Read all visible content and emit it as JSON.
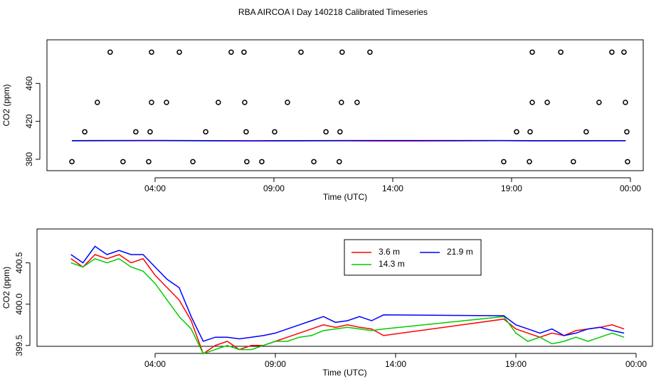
{
  "chart_data": [
    {
      "type": "line",
      "title": "RBA AIRCOA I  Day 140218  Calibrated Timeseries",
      "xlabel": "Time (UTC)",
      "ylabel": "CO2 (ppm)",
      "xlim": [
        -0.55,
        24.54
      ],
      "ylim": [
        368,
        506
      ],
      "xticks": [
        {
          "value": 4,
          "label": "04:00"
        },
        {
          "value": 9,
          "label": "09:00"
        },
        {
          "value": 14,
          "label": "14:00"
        },
        {
          "value": 19,
          "label": "19:00"
        },
        {
          "value": 24,
          "label": "00:00"
        }
      ],
      "yticks": [
        380,
        420,
        460
      ],
      "series": [
        {
          "color": "#00cc00",
          "x": [
            0.5,
            4,
            8,
            12,
            13.5,
            15,
            18.6,
            20,
            23.8
          ],
          "values": [
            399.4,
            399.6,
            399.3,
            399.5,
            399.6,
            399.5,
            399.6,
            399.4,
            399.5
          ]
        },
        {
          "color": "#ff0000",
          "x": [
            0.5,
            4,
            8,
            12,
            13.5,
            15,
            18.6,
            20,
            23.8
          ],
          "values": [
            399.6,
            399.7,
            399.4,
            399.6,
            399.3,
            399.3,
            399.7,
            399.5,
            399.6
          ]
        },
        {
          "color": "#0000ff",
          "x": [
            0.5,
            4,
            8,
            12,
            13.5,
            15,
            18.6,
            20,
            23.8
          ],
          "values": [
            399.7,
            399.9,
            399.5,
            399.8,
            399.8,
            399.8,
            399.8,
            399.6,
            399.7
          ]
        },
        {
          "color": "#000000",
          "marker": "circle",
          "x": [
            2.11,
            3.85,
            5.02,
            7.2,
            7.74,
            10.14,
            11.87,
            13.04,
            19.87,
            21.07,
            23.22,
            23.73,
            1.57,
            3.85,
            4.48,
            6.66,
            7.77,
            9.57,
            11.84,
            12.5,
            19.87,
            20.5,
            22.68,
            23.79,
            1.04,
            3.19,
            3.79,
            6.13,
            7.83,
            9.03,
            11.19,
            11.78,
            19.21,
            19.78,
            22.14,
            23.85,
            0.5,
            2.65,
            3.73,
            5.59,
            7.86,
            8.49,
            10.68,
            11.75,
            18.67,
            19.75,
            21.6,
            23.88
          ],
          "values": [
            493,
            493,
            493,
            493,
            493,
            493,
            493,
            493,
            493,
            493,
            493,
            493,
            440,
            440,
            440,
            440,
            440,
            440,
            440,
            440,
            440,
            440,
            440,
            440,
            409,
            409,
            409,
            409,
            409,
            409,
            409,
            409,
            409,
            409,
            409,
            409,
            377.5,
            377.5,
            377.5,
            377.5,
            377.5,
            377.5,
            377.5,
            377.5,
            377.5,
            377.5,
            377.5,
            377.5
          ]
        }
      ]
    },
    {
      "type": "line",
      "xlabel": "Time (UTC)",
      "ylabel": "CO2 (ppm)",
      "xlim": [
        -0.91,
        24.68
      ],
      "ylim": [
        399.49,
        400.91
      ],
      "xticks": [
        {
          "value": 4,
          "label": "04:00"
        },
        {
          "value": 9,
          "label": "09:00"
        },
        {
          "value": 14,
          "label": "14:00"
        },
        {
          "value": 19,
          "label": "19:00"
        },
        {
          "value": 24,
          "label": "00:00"
        }
      ],
      "yticks": [
        399.5,
        {
          "value": 400,
          "label": "400.0"
        },
        400.5
      ],
      "legend": "top",
      "x": [
        0.5,
        1,
        1.5,
        2,
        2.5,
        3,
        3.5,
        4,
        4.5,
        5,
        5.5,
        6,
        6.5,
        7,
        7.5,
        8,
        8.5,
        9,
        9.5,
        10,
        10.5,
        11,
        11.5,
        12,
        12.5,
        13,
        13.5,
        18.5,
        19,
        19.5,
        20,
        20.5,
        21,
        21.5,
        22,
        22.5,
        23,
        23.5
      ],
      "series": [
        {
          "name": "3.6 m",
          "color": "#ff0000",
          "values": [
            400.55,
            400.45,
            400.6,
            400.55,
            400.6,
            400.5,
            400.55,
            400.35,
            400.2,
            400.05,
            399.8,
            399.4,
            399.5,
            399.55,
            399.45,
            399.5,
            399.5,
            399.55,
            399.6,
            399.65,
            399.7,
            399.75,
            399.72,
            399.75,
            399.72,
            399.7,
            399.62,
            399.82,
            399.7,
            399.65,
            399.6,
            399.65,
            399.62,
            399.68,
            399.7,
            399.72,
            399.75,
            399.7
          ]
        },
        {
          "name": "14.3 m",
          "color": "#00cc00",
          "values": [
            400.5,
            400.45,
            400.55,
            400.5,
            400.55,
            400.45,
            400.4,
            400.25,
            400.05,
            399.85,
            399.7,
            399.4,
            399.45,
            399.5,
            399.45,
            399.45,
            399.5,
            399.55,
            399.55,
            399.6,
            399.62,
            399.68,
            399.7,
            399.72,
            399.7,
            399.68,
            399.7,
            399.85,
            399.65,
            399.55,
            399.6,
            399.52,
            399.55,
            399.6,
            399.55,
            399.6,
            399.65,
            399.6
          ]
        },
        {
          "name": "21.9 m",
          "color": "#0000ff",
          "values": [
            400.6,
            400.5,
            400.7,
            400.6,
            400.65,
            400.6,
            400.6,
            400.45,
            400.3,
            400.2,
            399.85,
            399.55,
            399.6,
            399.6,
            399.58,
            399.6,
            399.62,
            399.65,
            399.7,
            399.75,
            399.8,
            399.85,
            399.78,
            399.8,
            399.85,
            399.8,
            399.87,
            399.86,
            399.75,
            399.7,
            399.65,
            399.7,
            399.62,
            399.65,
            399.7,
            399.72,
            399.68,
            399.65
          ]
        }
      ]
    }
  ]
}
